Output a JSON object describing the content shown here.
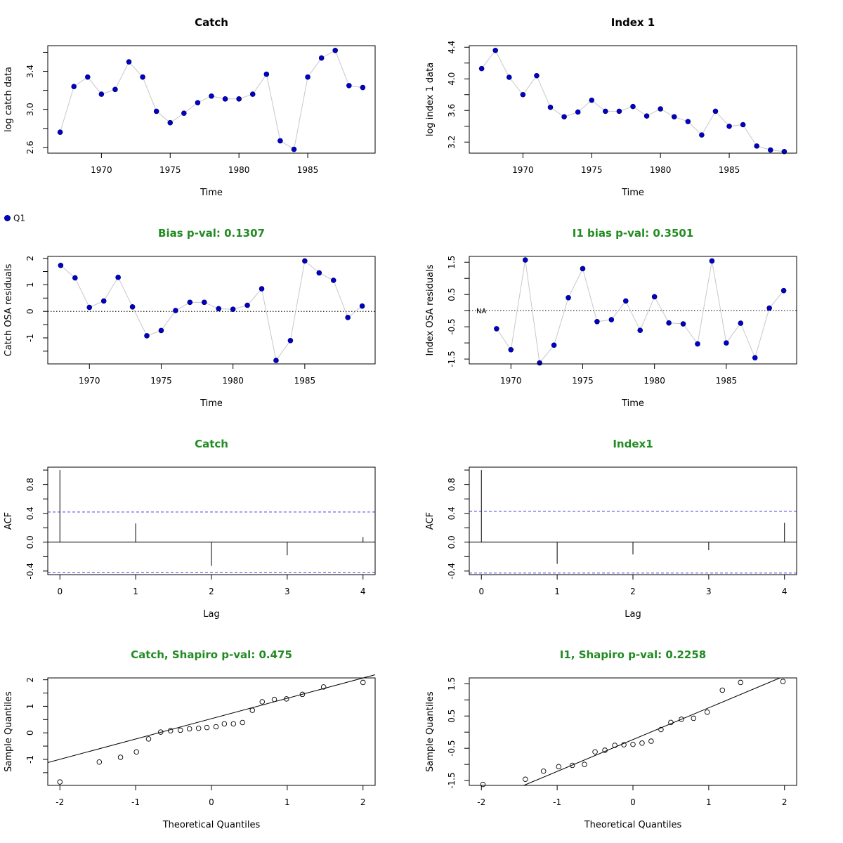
{
  "legend": {
    "label": "Q1",
    "color": "#0000cd"
  },
  "colors": {
    "point": "#0000cd",
    "connector": "#c8c8c8",
    "green_title": "#228b22",
    "ci_line": "#3f3fdf"
  },
  "chart_data": [
    {
      "type": "line",
      "title": "Catch",
      "title_color": "#000000",
      "xlabel": "Time",
      "ylabel": "log catch data",
      "xlim": [
        1966.1,
        1989.9
      ],
      "ylim": [
        2.54,
        3.67
      ],
      "xticks": [
        "1970",
        "1975",
        "1980",
        "1985"
      ],
      "yticks": [
        "2.6",
        "3.0",
        "3.4"
      ],
      "series": [
        {
          "name": "Q1",
          "x": [
            1967,
            1968,
            1969,
            1970,
            1971,
            1972,
            1973,
            1974,
            1975,
            1976,
            1977,
            1978,
            1979,
            1980,
            1981,
            1982,
            1983,
            1984,
            1985,
            1986,
            1987,
            1988,
            1989
          ],
          "y": [
            2.76,
            3.24,
            3.34,
            3.16,
            3.21,
            3.5,
            3.34,
            2.98,
            2.86,
            2.96,
            3.07,
            3.14,
            3.11,
            3.11,
            3.16,
            3.37,
            2.67,
            2.58,
            3.34,
            3.54,
            3.62,
            3.25,
            3.23
          ]
        }
      ]
    },
    {
      "type": "line",
      "title": "Index 1",
      "title_color": "#000000",
      "xlabel": "Time",
      "ylabel": "log index 1 data",
      "xlim": [
        1966.1,
        1989.9
      ],
      "ylim": [
        3.06,
        4.42
      ],
      "xticks": [
        "1970",
        "1975",
        "1980",
        "1985"
      ],
      "yticks": [
        "3.2",
        "3.6",
        "4.0",
        "4.4"
      ],
      "series": [
        {
          "name": "Q1",
          "x": [
            1967,
            1968,
            1969,
            1970,
            1971,
            1972,
            1973,
            1974,
            1975,
            1976,
            1977,
            1978,
            1979,
            1980,
            1981,
            1982,
            1983,
            1984,
            1985,
            1986,
            1987,
            1988,
            1989
          ],
          "y": [
            4.13,
            4.36,
            4.02,
            3.8,
            4.04,
            3.64,
            3.52,
            3.58,
            3.73,
            3.59,
            3.59,
            3.65,
            3.53,
            3.62,
            3.52,
            3.46,
            3.29,
            3.59,
            3.4,
            3.42,
            3.15,
            3.1,
            3.08
          ]
        }
      ]
    },
    {
      "type": "line",
      "title": "Bias p-val: 0.1307",
      "title_color": "#228b22",
      "xlabel": "Time",
      "ylabel": "Catch OSA residuals",
      "xlim": [
        1967.1,
        1989.9
      ],
      "ylim": [
        -1.98,
        2.07
      ],
      "xticks": [
        "1970",
        "1975",
        "1980",
        "1985"
      ],
      "yticks": [
        "-1",
        "0",
        "1",
        "2"
      ],
      "hline": 0,
      "series": [
        {
          "name": "Q1",
          "x": [
            1968,
            1969,
            1970,
            1971,
            1972,
            1973,
            1974,
            1975,
            1976,
            1977,
            1978,
            1979,
            1980,
            1981,
            1982,
            1983,
            1984,
            1985,
            1986,
            1987,
            1988,
            1989
          ],
          "y": [
            1.73,
            1.26,
            0.15,
            0.39,
            1.28,
            0.17,
            -0.92,
            -0.72,
            0.03,
            0.34,
            0.34,
            0.1,
            0.08,
            0.23,
            0.85,
            -1.85,
            -1.1,
            1.9,
            1.45,
            1.17,
            -0.23,
            0.2
          ]
        }
      ]
    },
    {
      "type": "line",
      "title": "I1 bias p-val: 0.3501",
      "title_color": "#228b22",
      "xlabel": "Time",
      "ylabel": "Index OSA residuals",
      "xlim": [
        1967.1,
        1989.9
      ],
      "ylim": [
        -1.65,
        1.68
      ],
      "xticks": [
        "1970",
        "1975",
        "1980",
        "1985"
      ],
      "yticks": [
        "-1.5",
        "-0.5",
        "0.5",
        "1.5"
      ],
      "hline": 0,
      "annotation": "NA",
      "series": [
        {
          "name": "Q1",
          "x": [
            1969,
            1970,
            1971,
            1972,
            1973,
            1974,
            1975,
            1976,
            1977,
            1978,
            1979,
            1980,
            1981,
            1982,
            1983,
            1984,
            1985,
            1986,
            1987,
            1988,
            1989
          ],
          "y": [
            -0.56,
            -1.21,
            1.57,
            -1.62,
            -1.07,
            0.4,
            1.3,
            -0.34,
            -0.28,
            0.3,
            -0.61,
            0.43,
            -0.38,
            -0.41,
            -1.03,
            1.54,
            -1.0,
            -0.39,
            -1.46,
            0.08,
            0.62
          ]
        }
      ]
    },
    {
      "type": "bar",
      "title": "Catch",
      "title_color": "#228b22",
      "xlabel": "Lag",
      "ylabel": "ACF",
      "xlim": [
        -0.16,
        4.16
      ],
      "ylim": [
        -0.45,
        1.04
      ],
      "xticks": [
        "0",
        "1",
        "2",
        "3",
        "4"
      ],
      "yticks": [
        "-0.4",
        "0.0",
        "0.4",
        "0.8"
      ],
      "ci": 0.418,
      "lags": [
        0,
        1,
        2,
        3,
        4
      ],
      "values": [
        1.0,
        0.26,
        -0.33,
        -0.18,
        0.07
      ]
    },
    {
      "type": "bar",
      "title": "Index1",
      "title_color": "#228b22",
      "xlabel": "Lag",
      "ylabel": "ACF",
      "xlim": [
        -0.16,
        4.16
      ],
      "ylim": [
        -0.45,
        1.04
      ],
      "xticks": [
        "0",
        "1",
        "2",
        "3",
        "4"
      ],
      "yticks": [
        "-0.4",
        "0.0",
        "0.4",
        "0.8"
      ],
      "ci": 0.428,
      "lags": [
        0,
        1,
        2,
        3,
        4
      ],
      "values": [
        1.0,
        -0.3,
        -0.17,
        -0.11,
        0.27
      ]
    },
    {
      "type": "scatter",
      "title": "Catch, Shapiro p-val: 0.475",
      "title_color": "#228b22",
      "xlabel": "Theoretical Quantiles",
      "ylabel": "Sample Quantiles",
      "xlim": [
        -2.16,
        2.16
      ],
      "ylim": [
        -1.98,
        2.07
      ],
      "xticks": [
        "-2",
        "-1",
        "0",
        "1",
        "2"
      ],
      "yticks": [
        "-1",
        "0",
        "1",
        "2"
      ],
      "qqline": {
        "x": [
          -2.16,
          2.16
        ],
        "y": [
          -1.12,
          2.19
        ]
      },
      "series": [
        {
          "name": "Q1",
          "x": [
            -2.0,
            -1.48,
            -1.2,
            -0.99,
            -0.83,
            -0.67,
            -0.54,
            -0.41,
            -0.29,
            -0.17,
            -0.06,
            0.06,
            0.17,
            0.29,
            0.41,
            0.54,
            0.67,
            0.83,
            0.99,
            1.2,
            1.48,
            2.0
          ],
          "y": [
            -1.85,
            -1.1,
            -0.92,
            -0.72,
            -0.23,
            0.03,
            0.08,
            0.1,
            0.15,
            0.17,
            0.2,
            0.23,
            0.34,
            0.34,
            0.39,
            0.85,
            1.17,
            1.26,
            1.28,
            1.45,
            1.73,
            1.9
          ]
        }
      ]
    },
    {
      "type": "scatter",
      "title": "I1, Shapiro p-val: 0.2258",
      "title_color": "#228b22",
      "xlabel": "Theoretical Quantiles",
      "ylabel": "Sample Quantiles",
      "xlim": [
        -2.16,
        2.16
      ],
      "ylim": [
        -1.65,
        1.68
      ],
      "xticks": [
        "-2",
        "-1",
        "0",
        "1",
        "2"
      ],
      "yticks": [
        "-1.5",
        "-0.5",
        "0.5",
        "1.5"
      ],
      "qqline": {
        "x": [
          -1.44,
          1.94
        ],
        "y": [
          -1.65,
          1.68
        ]
      },
      "series": [
        {
          "name": "Q1",
          "x": [
            -1.98,
            -1.42,
            -1.18,
            -0.98,
            -0.8,
            -0.64,
            -0.5,
            -0.37,
            -0.24,
            -0.12,
            0.0,
            0.12,
            0.24,
            0.37,
            0.5,
            0.64,
            0.8,
            0.98,
            1.18,
            1.42,
            1.98
          ],
          "y": [
            -1.62,
            -1.46,
            -1.21,
            -1.07,
            -1.03,
            -1.0,
            -0.61,
            -0.56,
            -0.41,
            -0.39,
            -0.38,
            -0.34,
            -0.28,
            0.08,
            0.3,
            0.4,
            0.43,
            0.62,
            1.3,
            1.54,
            1.57
          ]
        }
      ]
    }
  ]
}
